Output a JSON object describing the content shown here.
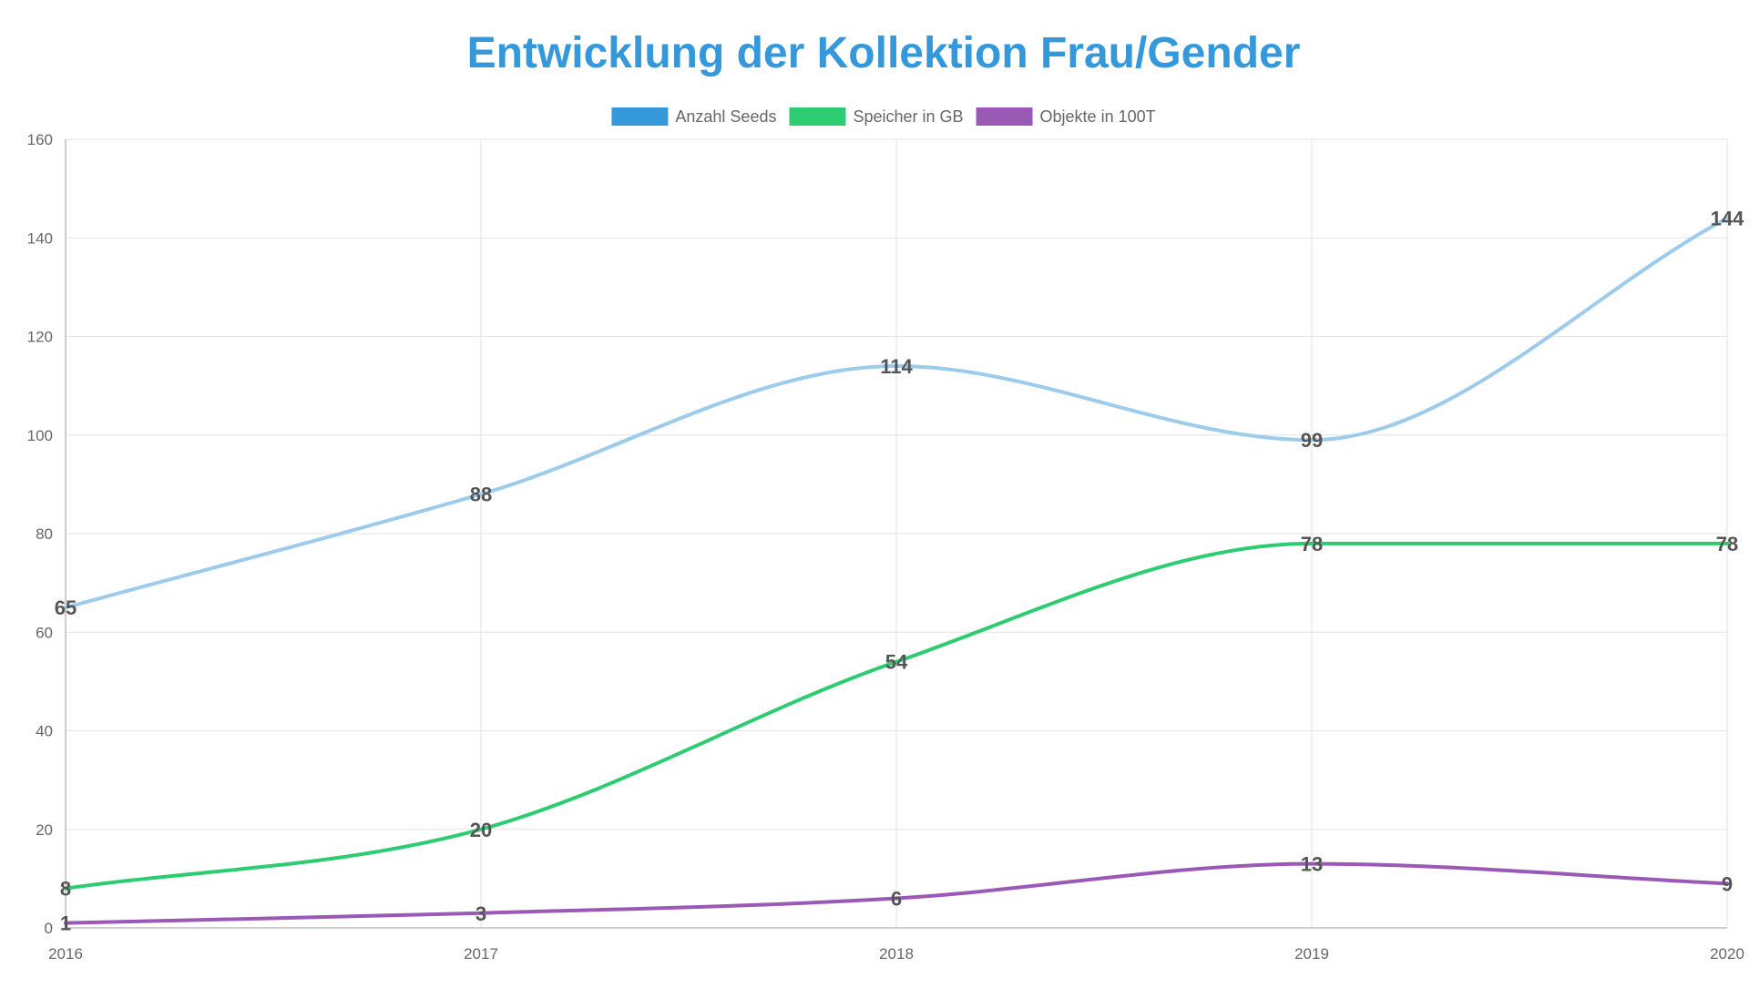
{
  "chart_data": {
    "type": "line",
    "title": "Entwicklung der Kollektion Frau/Gender",
    "title_color": "#3498db",
    "x": [
      "2016",
      "2017",
      "2018",
      "2019",
      "2020"
    ],
    "series": [
      {
        "name": "Anzahl Seeds",
        "values": [
          65,
          88,
          114,
          99,
          144
        ],
        "color": "#9ccbec",
        "legend_color": "#3498db"
      },
      {
        "name": "Speicher in GB",
        "values": [
          8,
          20,
          54,
          78,
          78
        ],
        "color": "#2ecc71",
        "legend_color": "#2ecc71"
      },
      {
        "name": "Objekte in 100T",
        "values": [
          1,
          3,
          6,
          13,
          9
        ],
        "color": "#9b59b6",
        "legend_color": "#9b59b6"
      }
    ],
    "ylim": [
      0,
      160
    ],
    "yticks": [
      0,
      20,
      40,
      60,
      80,
      100,
      120,
      140,
      160
    ],
    "grid": true,
    "legend_position": "top-center",
    "data_labels": true,
    "curve": "smooth"
  }
}
